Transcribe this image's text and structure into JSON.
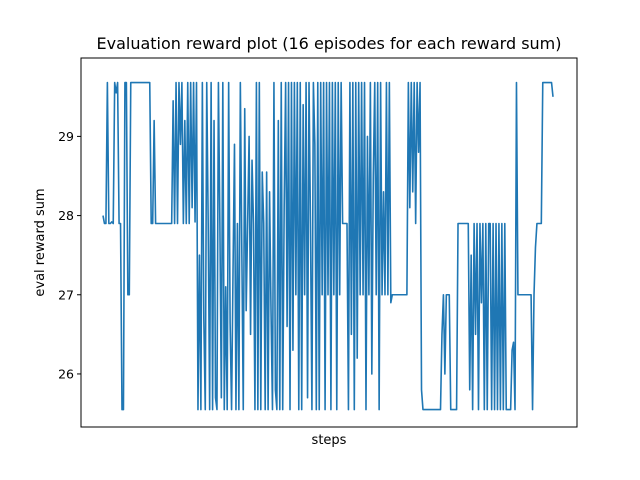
{
  "chart_data": {
    "type": "line",
    "title": "Evaluation reward plot (16 episodes for each reward sum)",
    "xlabel": "steps",
    "ylabel": "eval reward sum",
    "xlim": [
      0,
      1000
    ],
    "ylim": [
      25.33,
      29.99
    ],
    "yticks": [
      26,
      27,
      28,
      29
    ],
    "ytick_labels": [
      "26",
      "27",
      "28",
      "29"
    ],
    "show_xticks": false,
    "grid": false,
    "series": [
      {
        "color": "#1f77b4",
        "values": [
          28.0,
          27.9,
          27.9,
          29.68,
          27.9,
          27.9,
          27.92,
          27.9,
          29.68,
          29.55,
          29.68,
          27.9,
          27.9,
          25.55,
          25.55,
          29.68,
          29.68,
          27.0,
          27.0,
          29.68,
          29.68,
          29.68,
          29.68,
          29.68,
          29.68,
          29.68,
          29.68,
          29.68,
          29.68,
          29.68,
          29.68,
          29.68,
          29.68,
          27.9,
          27.9,
          29.2,
          27.9,
          27.9,
          27.9,
          27.9,
          27.9,
          27.9,
          27.9,
          27.9,
          27.9,
          27.9,
          27.9,
          27.9,
          29.45,
          27.9,
          29.68,
          27.9,
          29.68,
          28.9,
          29.68,
          27.9,
          29.2,
          27.9,
          29.68,
          27.9,
          29.68,
          28.1,
          29.68,
          27.92,
          29.68,
          25.55,
          27.5,
          25.55,
          29.68,
          26.7,
          25.55,
          29.68,
          27.9,
          25.55,
          29.68,
          25.55,
          29.2,
          25.7,
          25.55,
          29.68,
          27.9,
          25.7,
          29.68,
          25.55,
          27.1,
          25.55,
          29.68,
          26.65,
          25.55,
          27.3,
          28.9,
          25.55,
          27.9,
          25.55,
          29.68,
          27.6,
          25.55,
          29.35,
          26.8,
          27.9,
          29.0,
          26.5,
          28.7,
          27.9,
          25.55,
          29.68,
          25.55,
          29.68,
          25.55,
          28.55,
          27.9,
          25.55,
          28.55,
          25.55,
          28.3,
          26.8,
          25.55,
          29.68,
          25.8,
          25.55,
          29.2,
          25.55,
          29.68,
          25.55,
          28.1,
          29.68,
          26.6,
          29.68,
          25.55,
          29.68,
          26.3,
          29.68,
          27.0,
          29.68,
          25.55,
          29.68,
          25.55,
          29.4,
          27.0,
          29.68,
          25.7,
          29.68,
          27.9,
          25.55,
          29.68,
          28.9,
          25.55,
          29.68,
          25.55,
          29.68,
          27.0,
          29.68,
          25.55,
          29.68,
          27.0,
          29.68,
          25.55,
          29.68,
          27.0,
          29.68,
          25.55,
          29.68,
          27.0,
          29.68,
          27.9,
          27.9,
          27.9,
          27.9,
          25.55,
          29.68,
          26.5,
          29.68,
          25.55,
          29.68,
          26.2,
          29.68,
          27.0,
          29.68,
          27.0,
          29.68,
          25.55,
          29.0,
          27.0,
          29.68,
          26.0,
          28.5,
          29.68,
          27.0,
          29.68,
          25.55,
          29.68,
          27.0,
          28.3,
          27.0,
          29.68,
          27.0,
          29.68,
          26.9,
          27.0,
          27.0,
          27.0,
          27.0,
          27.0,
          27.0,
          27.0,
          27.0,
          27.0,
          27.0,
          27.0,
          29.68,
          28.1,
          29.68,
          28.3,
          29.68,
          27.9,
          29.68,
          28.8,
          29.68,
          25.8,
          25.55,
          25.55,
          25.55,
          25.55,
          25.55,
          25.55,
          25.55,
          25.55,
          25.55,
          25.55,
          25.55,
          25.55,
          25.55,
          26.5,
          27.0,
          26.0,
          27.0,
          27.0,
          27.0,
          25.55,
          25.55,
          25.55,
          25.55,
          25.55,
          27.9,
          27.9,
          27.9,
          27.9,
          27.9,
          27.9,
          27.9,
          27.9,
          25.8,
          27.5,
          25.55,
          27.9,
          26.5,
          27.9,
          25.55,
          27.9,
          26.9,
          27.9,
          25.55,
          27.9,
          25.55,
          27.9,
          27.9,
          25.55,
          27.9,
          25.55,
          27.9,
          25.55,
          27.9,
          25.55,
          27.9,
          25.55,
          27.9,
          25.55,
          25.55,
          25.55,
          25.55,
          26.3,
          26.4,
          25.55,
          29.68,
          27.0,
          27.0,
          27.0,
          27.0,
          27.0,
          27.0,
          27.0,
          27.0,
          27.0,
          27.0,
          25.55,
          27.0,
          27.6,
          27.9,
          27.9,
          27.9,
          27.9,
          29.68,
          29.68,
          29.68,
          29.68,
          29.68,
          29.68,
          29.68,
          29.5
        ]
      }
    ]
  }
}
